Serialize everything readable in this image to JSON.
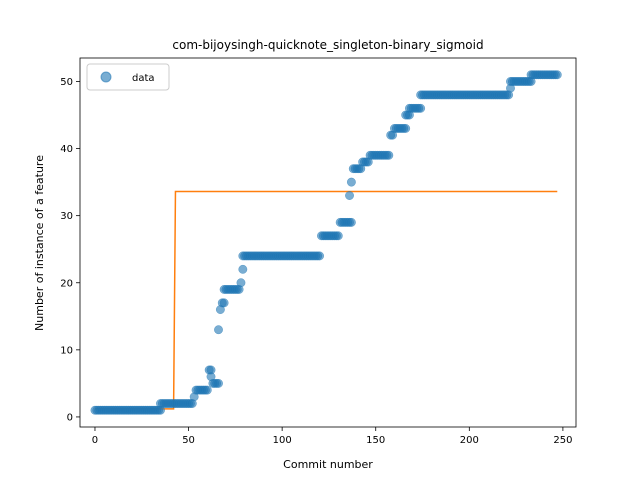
{
  "chart_data": {
    "type": "scatter",
    "title": "com-bijoysingh-quicknote_singleton-binary_sigmoid",
    "xlabel": "Commit number",
    "ylabel": "Number of instance of a feature",
    "xlim": [
      -8,
      257
    ],
    "ylim": [
      -1.5,
      53.5
    ],
    "xticks": [
      0,
      50,
      100,
      150,
      200,
      250
    ],
    "yticks": [
      0,
      10,
      20,
      30,
      40,
      50
    ],
    "legend": {
      "position": "upper-left",
      "entries": [
        "data"
      ]
    },
    "colors": {
      "data": "#1f77b4",
      "fit": "#ff7f0e"
    },
    "series": [
      {
        "name": "data",
        "kind": "scatter",
        "segments": [
          {
            "x_start": 0,
            "x_end": 35,
            "y": 1
          },
          {
            "x_start": 35,
            "x_end": 52,
            "y": 2
          },
          {
            "x_start": 53,
            "x_end": 53,
            "y": 3
          },
          {
            "x_start": 54,
            "x_end": 60,
            "y": 4
          },
          {
            "x_start": 61,
            "x_end": 62,
            "y": 7
          },
          {
            "x_start": 62,
            "x_end": 62,
            "y": 6
          },
          {
            "x_start": 63,
            "x_end": 66,
            "y": 5
          },
          {
            "x_start": 66,
            "x_end": 66,
            "y": 13
          },
          {
            "x_start": 67,
            "x_end": 67,
            "y": 16
          },
          {
            "x_start": 68,
            "x_end": 69,
            "y": 17
          },
          {
            "x_start": 69,
            "x_end": 77,
            "y": 19
          },
          {
            "x_start": 78,
            "x_end": 78,
            "y": 20
          },
          {
            "x_start": 79,
            "x_end": 79,
            "y": 22
          },
          {
            "x_start": 79,
            "x_end": 120,
            "y": 24
          },
          {
            "x_start": 121,
            "x_end": 130,
            "y": 27
          },
          {
            "x_start": 131,
            "x_end": 137,
            "y": 29
          },
          {
            "x_start": 136,
            "x_end": 136,
            "y": 33
          },
          {
            "x_start": 137,
            "x_end": 137,
            "y": 35
          },
          {
            "x_start": 138,
            "x_end": 142,
            "y": 37
          },
          {
            "x_start": 143,
            "x_end": 146,
            "y": 38
          },
          {
            "x_start": 147,
            "x_end": 157,
            "y": 39
          },
          {
            "x_start": 158,
            "x_end": 159,
            "y": 42
          },
          {
            "x_start": 160,
            "x_end": 166,
            "y": 43
          },
          {
            "x_start": 166,
            "x_end": 168,
            "y": 45
          },
          {
            "x_start": 168,
            "x_end": 174,
            "y": 46
          },
          {
            "x_start": 174,
            "x_end": 221,
            "y": 48
          },
          {
            "x_start": 222,
            "x_end": 222,
            "y": 49
          },
          {
            "x_start": 222,
            "x_end": 233,
            "y": 50
          },
          {
            "x_start": 233,
            "x_end": 247,
            "y": 51
          }
        ]
      },
      {
        "kind": "line",
        "x": [
          0,
          42,
          43,
          247
        ],
        "y": [
          1.2,
          1.2,
          33.6,
          33.6
        ]
      }
    ]
  }
}
